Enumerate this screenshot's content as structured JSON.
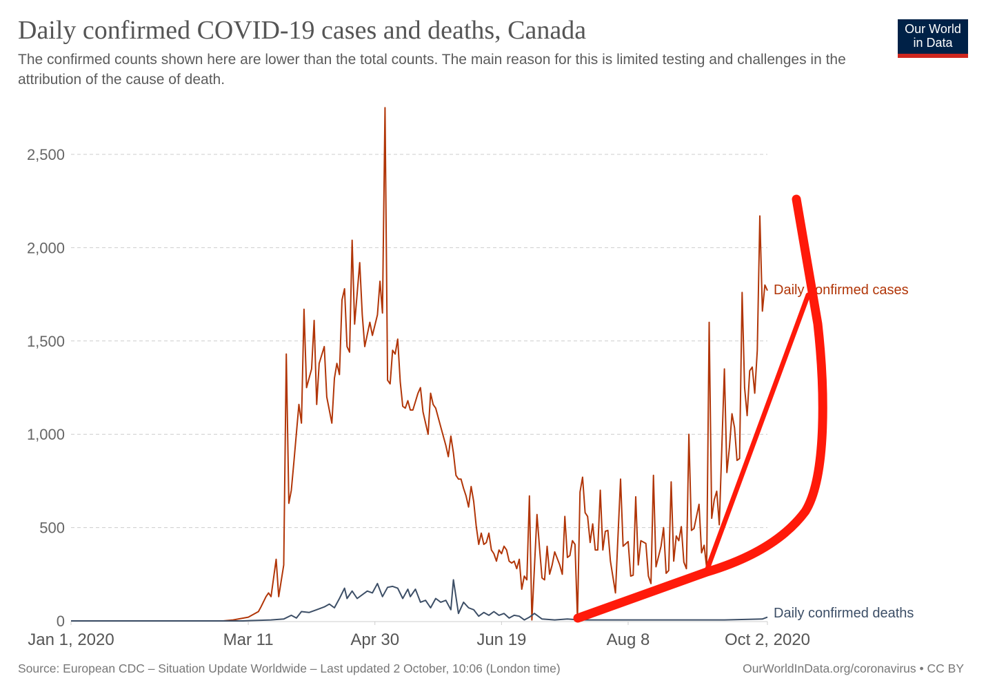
{
  "header": {
    "title": "Daily confirmed COVID-19 cases and deaths, Canada",
    "subtitle": "The confirmed counts shown here are lower than the total counts. The main reason for this is limited testing and challenges in the attribution of the cause of death.",
    "logo_text": [
      "Our World",
      "in Data"
    ]
  },
  "footer": {
    "source": "Source: European CDC – Situation Update Worldwide – Last updated 2 October, 10:06 (London time)",
    "credit": "OurWorldInData.org/coronavirus • CC BY"
  },
  "colors": {
    "cases": "#b13507",
    "deaths": "#3c4e66",
    "annotation": "#ff1a0a",
    "logo_bg": "#002147",
    "logo_bar": "#ce261e"
  },
  "chart_data": {
    "type": "line",
    "title": "Daily confirmed COVID-19 cases and deaths, Canada",
    "xlim": [
      "2020-01-01",
      "2020-10-02"
    ],
    "ylim": [
      0,
      2750
    ],
    "yticks": [
      0,
      500,
      1000,
      1500,
      2000,
      2500
    ],
    "ytick_labels": [
      "0",
      "500",
      "1,000",
      "1,500",
      "2,000",
      "2,500"
    ],
    "xticks": [
      "2020-01-01",
      "2020-03-11",
      "2020-04-30",
      "2020-06-19",
      "2020-08-08",
      "2020-10-02"
    ],
    "xtick_labels": [
      "Jan 1, 2020",
      "Mar 11",
      "Apr 30",
      "Jun 19",
      "Aug 8",
      "Oct 2, 2020"
    ],
    "grid": "horizontal dashed",
    "legend": "inline labels at right end of lines",
    "series": [
      {
        "name": "Daily confirmed cases",
        "points": [
          [
            "2020-01-01",
            0
          ],
          [
            "2020-03-01",
            0
          ],
          [
            "2020-03-05",
            5
          ],
          [
            "2020-03-11",
            20
          ],
          [
            "2020-03-15",
            50
          ],
          [
            "2020-03-16",
            75
          ],
          [
            "2020-03-18",
            130
          ],
          [
            "2020-03-19",
            150
          ],
          [
            "2020-03-20",
            130
          ],
          [
            "2020-03-22",
            330
          ],
          [
            "2020-03-23",
            130
          ],
          [
            "2020-03-25",
            300
          ],
          [
            "2020-03-26",
            1430
          ],
          [
            "2020-03-27",
            630
          ],
          [
            "2020-03-28",
            700
          ],
          [
            "2020-03-29",
            850
          ],
          [
            "2020-03-31",
            1160
          ],
          [
            "2020-04-01",
            1060
          ],
          [
            "2020-04-02",
            1670
          ],
          [
            "2020-04-03",
            1250
          ],
          [
            "2020-04-05",
            1350
          ],
          [
            "2020-04-06",
            1610
          ],
          [
            "2020-04-07",
            1160
          ],
          [
            "2020-04-08",
            1380
          ],
          [
            "2020-04-10",
            1470
          ],
          [
            "2020-04-11",
            1200
          ],
          [
            "2020-04-13",
            1060
          ],
          [
            "2020-04-14",
            1300
          ],
          [
            "2020-04-15",
            1380
          ],
          [
            "2020-04-16",
            1320
          ],
          [
            "2020-04-17",
            1720
          ],
          [
            "2020-04-18",
            1780
          ],
          [
            "2020-04-19",
            1470
          ],
          [
            "2020-04-20",
            1440
          ],
          [
            "2020-04-21",
            2040
          ],
          [
            "2020-04-22",
            1590
          ],
          [
            "2020-04-24",
            1920
          ],
          [
            "2020-04-25",
            1640
          ],
          [
            "2020-04-26",
            1470
          ],
          [
            "2020-04-28",
            1600
          ],
          [
            "2020-04-29",
            1530
          ],
          [
            "2020-05-01",
            1640
          ],
          [
            "2020-05-02",
            1820
          ],
          [
            "2020-05-03",
            1650
          ],
          [
            "2020-05-04",
            2750
          ],
          [
            "2020-05-05",
            1290
          ],
          [
            "2020-05-06",
            1270
          ],
          [
            "2020-05-07",
            1450
          ],
          [
            "2020-05-08",
            1430
          ],
          [
            "2020-05-09",
            1510
          ],
          [
            "2020-05-10",
            1280
          ],
          [
            "2020-05-11",
            1150
          ],
          [
            "2020-05-12",
            1140
          ],
          [
            "2020-05-13",
            1180
          ],
          [
            "2020-05-14",
            1130
          ],
          [
            "2020-05-15",
            1130
          ],
          [
            "2020-05-17",
            1220
          ],
          [
            "2020-05-18",
            1250
          ],
          [
            "2020-05-19",
            1120
          ],
          [
            "2020-05-20",
            1060
          ],
          [
            "2020-05-21",
            1000
          ],
          [
            "2020-05-22",
            1220
          ],
          [
            "2020-05-23",
            1160
          ],
          [
            "2020-05-24",
            1140
          ],
          [
            "2020-05-26",
            1040
          ],
          [
            "2020-05-28",
            940
          ],
          [
            "2020-05-29",
            880
          ],
          [
            "2020-05-30",
            990
          ],
          [
            "2020-05-31",
            900
          ],
          [
            "2020-06-01",
            780
          ],
          [
            "2020-06-02",
            760
          ],
          [
            "2020-06-03",
            760
          ],
          [
            "2020-06-04",
            710
          ],
          [
            "2020-06-05",
            670
          ],
          [
            "2020-06-06",
            610
          ],
          [
            "2020-06-07",
            720
          ],
          [
            "2020-06-08",
            640
          ],
          [
            "2020-06-09",
            510
          ],
          [
            "2020-06-10",
            410
          ],
          [
            "2020-06-11",
            470
          ],
          [
            "2020-06-12",
            410
          ],
          [
            "2020-06-13",
            420
          ],
          [
            "2020-06-14",
            470
          ],
          [
            "2020-06-15",
            380
          ],
          [
            "2020-06-16",
            360
          ],
          [
            "2020-06-17",
            320
          ],
          [
            "2020-06-18",
            380
          ],
          [
            "2020-06-19",
            360
          ],
          [
            "2020-06-20",
            400
          ],
          [
            "2020-06-21",
            380
          ],
          [
            "2020-06-22",
            320
          ],
          [
            "2020-06-23",
            310
          ],
          [
            "2020-06-24",
            320
          ],
          [
            "2020-06-25",
            280
          ],
          [
            "2020-06-26",
            330
          ],
          [
            "2020-06-27",
            170
          ],
          [
            "2020-06-28",
            240
          ],
          [
            "2020-06-29",
            220
          ],
          [
            "2020-06-30",
            670
          ],
          [
            "2020-07-01",
            5
          ],
          [
            "2020-07-03",
            570
          ],
          [
            "2020-07-04",
            390
          ],
          [
            "2020-07-05",
            230
          ],
          [
            "2020-07-06",
            220
          ],
          [
            "2020-07-07",
            400
          ],
          [
            "2020-07-08",
            250
          ],
          [
            "2020-07-09",
            300
          ],
          [
            "2020-07-10",
            370
          ],
          [
            "2020-07-12",
            300
          ],
          [
            "2020-07-13",
            250
          ],
          [
            "2020-07-14",
            560
          ],
          [
            "2020-07-15",
            340
          ],
          [
            "2020-07-16",
            350
          ],
          [
            "2020-07-17",
            430
          ],
          [
            "2020-07-18",
            410
          ],
          [
            "2020-07-19",
            10
          ],
          [
            "2020-07-20",
            690
          ],
          [
            "2020-07-21",
            770
          ],
          [
            "2020-07-22",
            580
          ],
          [
            "2020-07-23",
            560
          ],
          [
            "2020-07-24",
            420
          ],
          [
            "2020-07-25",
            520
          ],
          [
            "2020-07-26",
            380
          ],
          [
            "2020-07-27",
            380
          ],
          [
            "2020-07-28",
            700
          ],
          [
            "2020-07-29",
            380
          ],
          [
            "2020-07-30",
            480
          ],
          [
            "2020-07-31",
            485
          ],
          [
            "2020-08-01",
            320
          ],
          [
            "2020-08-03",
            150
          ],
          [
            "2020-08-05",
            760
          ],
          [
            "2020-08-06",
            400
          ],
          [
            "2020-08-08",
            425
          ],
          [
            "2020-08-09",
            240
          ],
          [
            "2020-08-10",
            245
          ],
          [
            "2020-08-11",
            665
          ],
          [
            "2020-08-12",
            300
          ],
          [
            "2020-08-13",
            430
          ],
          [
            "2020-08-15",
            415
          ],
          [
            "2020-08-16",
            240
          ],
          [
            "2020-08-17",
            200
          ],
          [
            "2020-08-18",
            780
          ],
          [
            "2020-08-19",
            290
          ],
          [
            "2020-08-21",
            400
          ],
          [
            "2020-08-22",
            500
          ],
          [
            "2020-08-23",
            255
          ],
          [
            "2020-08-24",
            270
          ],
          [
            "2020-08-25",
            745
          ],
          [
            "2020-08-26",
            320
          ],
          [
            "2020-08-27",
            455
          ],
          [
            "2020-08-28",
            430
          ],
          [
            "2020-08-29",
            505
          ],
          [
            "2020-08-30",
            315
          ],
          [
            "2020-08-31",
            280
          ],
          [
            "2020-09-01",
            1000
          ],
          [
            "2020-09-02",
            485
          ],
          [
            "2020-09-03",
            495
          ],
          [
            "2020-09-05",
            625
          ],
          [
            "2020-09-06",
            365
          ],
          [
            "2020-09-07",
            405
          ],
          [
            "2020-09-08",
            285
          ],
          [
            "2020-09-09",
            1600
          ],
          [
            "2020-09-10",
            550
          ],
          [
            "2020-09-11",
            650
          ],
          [
            "2020-09-12",
            695
          ],
          [
            "2020-09-13",
            515
          ],
          [
            "2020-09-15",
            1350
          ],
          [
            "2020-09-16",
            795
          ],
          [
            "2020-09-17",
            930
          ],
          [
            "2020-09-18",
            1110
          ],
          [
            "2020-09-19",
            1035
          ],
          [
            "2020-09-20",
            860
          ],
          [
            "2020-09-21",
            870
          ],
          [
            "2020-09-22",
            1760
          ],
          [
            "2020-09-23",
            1250
          ],
          [
            "2020-09-24",
            1100
          ],
          [
            "2020-09-25",
            1340
          ],
          [
            "2020-09-26",
            1360
          ],
          [
            "2020-09-27",
            1220
          ],
          [
            "2020-09-28",
            1450
          ],
          [
            "2020-09-29",
            2170
          ],
          [
            "2020-09-30",
            1660
          ],
          [
            "2020-10-01",
            1800
          ],
          [
            "2020-10-02",
            1770
          ]
        ]
      },
      {
        "name": "Daily confirmed deaths",
        "points": [
          [
            "2020-01-01",
            0
          ],
          [
            "2020-03-09",
            0
          ],
          [
            "2020-03-12",
            2
          ],
          [
            "2020-03-20",
            5
          ],
          [
            "2020-03-25",
            10
          ],
          [
            "2020-03-28",
            30
          ],
          [
            "2020-03-30",
            15
          ],
          [
            "2020-04-01",
            50
          ],
          [
            "2020-04-04",
            45
          ],
          [
            "2020-04-07",
            60
          ],
          [
            "2020-04-10",
            75
          ],
          [
            "2020-04-12",
            90
          ],
          [
            "2020-04-14",
            70
          ],
          [
            "2020-04-16",
            120
          ],
          [
            "2020-04-18",
            175
          ],
          [
            "2020-04-19",
            120
          ],
          [
            "2020-04-21",
            160
          ],
          [
            "2020-04-23",
            120
          ],
          [
            "2020-04-25",
            140
          ],
          [
            "2020-04-27",
            160
          ],
          [
            "2020-04-29",
            150
          ],
          [
            "2020-05-01",
            200
          ],
          [
            "2020-05-03",
            130
          ],
          [
            "2020-05-05",
            180
          ],
          [
            "2020-05-07",
            185
          ],
          [
            "2020-05-09",
            175
          ],
          [
            "2020-05-11",
            120
          ],
          [
            "2020-05-13",
            170
          ],
          [
            "2020-05-14",
            130
          ],
          [
            "2020-05-16",
            170
          ],
          [
            "2020-05-18",
            100
          ],
          [
            "2020-05-20",
            110
          ],
          [
            "2020-05-22",
            70
          ],
          [
            "2020-05-24",
            120
          ],
          [
            "2020-05-26",
            100
          ],
          [
            "2020-05-28",
            110
          ],
          [
            "2020-05-30",
            60
          ],
          [
            "2020-05-31",
            220
          ],
          [
            "2020-06-02",
            40
          ],
          [
            "2020-06-04",
            100
          ],
          [
            "2020-06-06",
            70
          ],
          [
            "2020-06-08",
            60
          ],
          [
            "2020-06-10",
            25
          ],
          [
            "2020-06-12",
            45
          ],
          [
            "2020-06-14",
            30
          ],
          [
            "2020-06-16",
            50
          ],
          [
            "2020-06-18",
            30
          ],
          [
            "2020-06-20",
            40
          ],
          [
            "2020-06-22",
            15
          ],
          [
            "2020-06-24",
            30
          ],
          [
            "2020-06-26",
            25
          ],
          [
            "2020-06-28",
            5
          ],
          [
            "2020-06-30",
            20
          ],
          [
            "2020-07-02",
            40
          ],
          [
            "2020-07-05",
            10
          ],
          [
            "2020-07-10",
            5
          ],
          [
            "2020-07-15",
            10
          ],
          [
            "2020-07-20",
            5
          ],
          [
            "2020-08-01",
            5
          ],
          [
            "2020-08-15",
            5
          ],
          [
            "2020-09-01",
            5
          ],
          [
            "2020-09-15",
            5
          ],
          [
            "2020-09-30",
            10
          ],
          [
            "2020-10-02",
            20
          ]
        ]
      }
    ]
  }
}
